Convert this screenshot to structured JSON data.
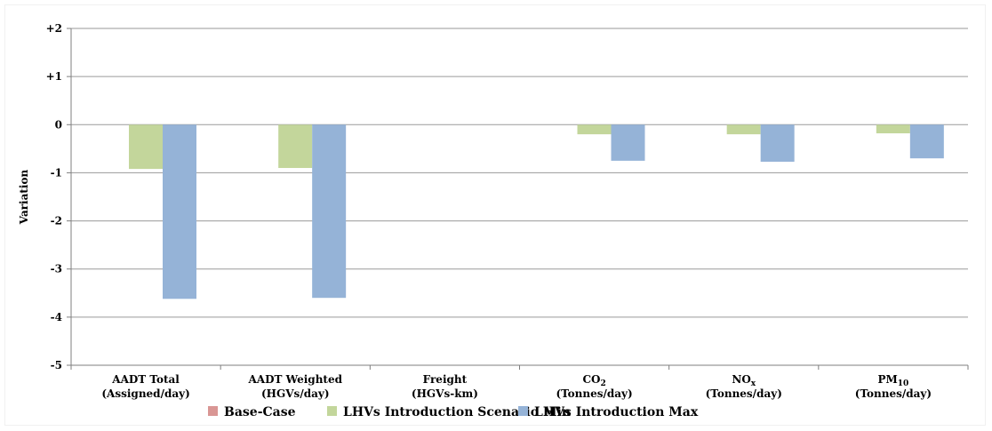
{
  "chart_data": {
    "type": "bar",
    "categories": [
      [
        "AADT Total",
        "(Assigned/day)"
      ],
      [
        "AADT Weighted",
        "(HGVs/day)"
      ],
      [
        "Freight",
        "(HGVs-km)"
      ],
      [
        "CO2",
        "(Tonnes/day)"
      ],
      [
        "NOx",
        "(Tonnes/day)"
      ],
      [
        "PM10",
        "(Tonnes/day)"
      ]
    ],
    "category_subscripts": [
      null,
      null,
      null,
      {
        "base": "CO",
        "sub": "2"
      },
      {
        "base": "NO",
        "sub": "x"
      },
      {
        "base": "PM",
        "sub": "10"
      }
    ],
    "series": [
      {
        "name": "Base-Case",
        "color": "#d99694",
        "values": [
          0,
          0,
          0,
          0,
          0,
          0
        ]
      },
      {
        "name": "LHVs Introduction Scenario Min",
        "color": "#c3d69b",
        "values": [
          -0.92,
          -0.9,
          0,
          -0.2,
          -0.2,
          -0.18
        ]
      },
      {
        "name": "LHVs Introduction Max",
        "color": "#95b3d7",
        "values": [
          -3.62,
          -3.6,
          0,
          -0.75,
          -0.77,
          -0.7
        ]
      }
    ],
    "yticks": [
      "+2",
      "+1",
      "0",
      "-1",
      "-2",
      "-3",
      "-4",
      "-5"
    ],
    "ylim": [
      -5,
      2
    ],
    "ylabel": "Variation",
    "xlabel": "",
    "grid": true,
    "legend": "bottom"
  }
}
